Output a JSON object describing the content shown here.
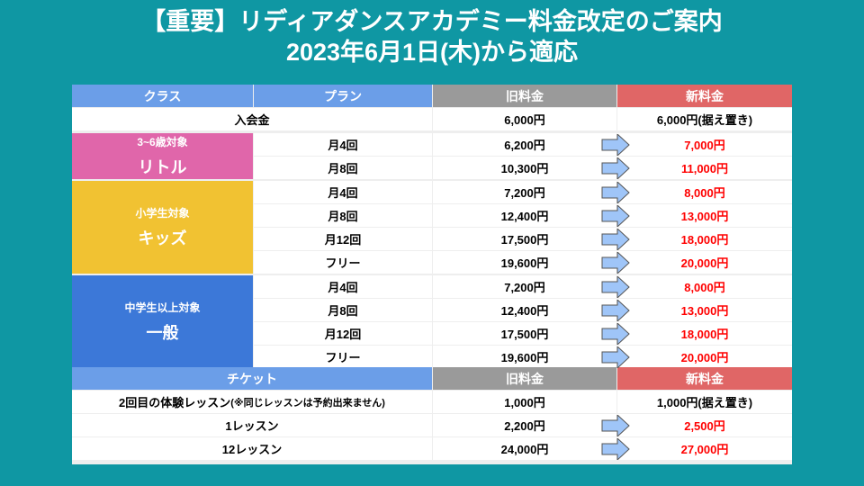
{
  "title": {
    "line1": "【重要】リディアダンスアカデミー料金改定のご案内",
    "line2": "2023年6月1日(木)から適応"
  },
  "header": {
    "class": "クラス",
    "plan": "プラン",
    "old": "旧料金",
    "new": "新料金"
  },
  "entry": {
    "label": "入会金",
    "old": "6,000円",
    "new": "6,000円(据え置き)"
  },
  "classes": [
    {
      "target": "3~6歳対象",
      "name": "リトル",
      "color": "#e066aa",
      "rows": [
        {
          "plan": "月4回",
          "old": "6,200円",
          "new": "7,000円"
        },
        {
          "plan": "月8回",
          "old": "10,300円",
          "new": "11,000円"
        }
      ]
    },
    {
      "target": "小学生対象",
      "name": "キッズ",
      "color": "#f1c232",
      "rows": [
        {
          "plan": "月4回",
          "old": "7,200円",
          "new": "8,000円"
        },
        {
          "plan": "月8回",
          "old": "12,400円",
          "new": "13,000円"
        },
        {
          "plan": "月12回",
          "old": "17,500円",
          "new": "18,000円"
        },
        {
          "plan": "フリー",
          "old": "19,600円",
          "new": "20,000円"
        }
      ]
    },
    {
      "target": "中学生以上対象",
      "name": "一般",
      "color": "#3c78d8",
      "rows": [
        {
          "plan": "月4回",
          "old": "7,200円",
          "new": "8,000円"
        },
        {
          "plan": "月8回",
          "old": "12,400円",
          "new": "13,000円"
        },
        {
          "plan": "月12回",
          "old": "17,500円",
          "new": "18,000円"
        },
        {
          "plan": "フリー",
          "old": "19,600円",
          "new": "20,000円"
        }
      ]
    }
  ],
  "ticket_header": {
    "ticket": "チケット",
    "old": "旧料金",
    "new": "新料金"
  },
  "tickets": [
    {
      "label": "2回目の体験レッスン",
      "note": "(※同じレッスンは予約出来ません)",
      "old": "1,000円",
      "new": "1,000円(据え置き)",
      "changed": false
    },
    {
      "label": "1レッスン",
      "old": "2,200円",
      "new": "2,500円",
      "changed": true
    },
    {
      "label": "12レッスン",
      "old": "24,000円",
      "new": "27,000円",
      "changed": true
    }
  ],
  "colors": {
    "background": "#0f97a3",
    "header_blue": "#6b9ee8",
    "header_gray": "#9a9a9a",
    "header_red": "#e06666",
    "new_price": "#ff0000",
    "arrow": "#9fc5f8"
  }
}
